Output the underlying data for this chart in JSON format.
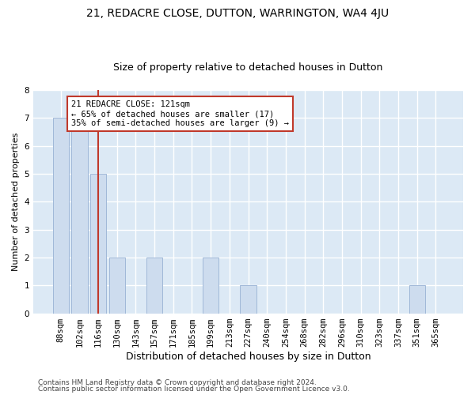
{
  "title1": "21, REDACRE CLOSE, DUTTON, WARRINGTON, WA4 4JU",
  "title2": "Size of property relative to detached houses in Dutton",
  "xlabel": "Distribution of detached houses by size in Dutton",
  "ylabel": "Number of detached properties",
  "footer1": "Contains HM Land Registry data © Crown copyright and database right 2024.",
  "footer2": "Contains public sector information licensed under the Open Government Licence v3.0.",
  "categories": [
    "88sqm",
    "102sqm",
    "116sqm",
    "130sqm",
    "143sqm",
    "157sqm",
    "171sqm",
    "185sqm",
    "199sqm",
    "213sqm",
    "227sqm",
    "240sqm",
    "254sqm",
    "268sqm",
    "282sqm",
    "296sqm",
    "310sqm",
    "323sqm",
    "337sqm",
    "351sqm",
    "365sqm"
  ],
  "values": [
    7,
    7,
    5,
    2,
    0,
    2,
    0,
    0,
    2,
    0,
    1,
    0,
    0,
    0,
    0,
    0,
    0,
    0,
    0,
    1,
    0
  ],
  "bar_color": "#cddcee",
  "bar_edge_color": "#a0b8d8",
  "highlight_index": 2,
  "highlight_edge_color": "#c0392b",
  "annotation_text": "21 REDACRE CLOSE: 121sqm\n← 65% of detached houses are smaller (17)\n35% of semi-detached houses are larger (9) →",
  "annotation_box_color": "#ffffff",
  "annotation_edge_color": "#c0392b",
  "ylim": [
    0,
    8
  ],
  "yticks": [
    0,
    1,
    2,
    3,
    4,
    5,
    6,
    7,
    8
  ],
  "fig_background": "#ffffff",
  "plot_background": "#dce9f5",
  "grid_color": "#ffffff",
  "title1_fontsize": 10,
  "title2_fontsize": 9,
  "annotation_fontsize": 7.5,
  "xlabel_fontsize": 9,
  "ylabel_fontsize": 8,
  "tick_fontsize": 7.5,
  "footer_fontsize": 6.5
}
